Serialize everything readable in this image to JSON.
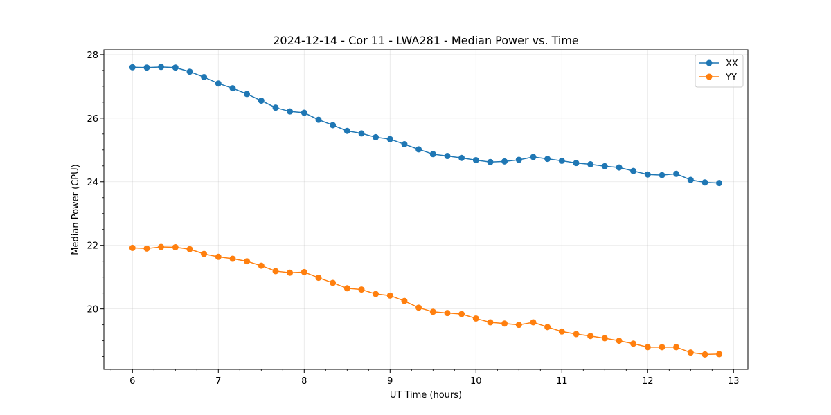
{
  "chart_data": {
    "type": "line",
    "title": "2024-12-14 - Cor 11 - LWA281 - Median Power vs. Time",
    "xlabel": "UT Time (hours)",
    "ylabel": "Median Power (CPU)",
    "xlim": [
      5.667,
      13.167
    ],
    "ylim": [
      18.1,
      28.15
    ],
    "xticks": [
      6,
      7,
      8,
      9,
      10,
      11,
      12,
      13
    ],
    "yticks": [
      20,
      22,
      24,
      26,
      28
    ],
    "grid": true,
    "legend_position": "top-right",
    "x": [
      6.0,
      6.167,
      6.333,
      6.5,
      6.667,
      6.833,
      7.0,
      7.167,
      7.333,
      7.5,
      7.667,
      7.833,
      8.0,
      8.167,
      8.333,
      8.5,
      8.667,
      8.833,
      9.0,
      9.167,
      9.333,
      9.5,
      9.667,
      9.833,
      10.0,
      10.167,
      10.333,
      10.5,
      10.667,
      10.833,
      11.0,
      11.167,
      11.333,
      11.5,
      11.667,
      11.833,
      12.0,
      12.167,
      12.333,
      12.5,
      12.667,
      12.833
    ],
    "series": [
      {
        "name": "XX",
        "color": "#1f77b4",
        "values": [
          27.6,
          27.59,
          27.61,
          27.59,
          27.46,
          27.29,
          27.09,
          26.94,
          26.76,
          26.55,
          26.33,
          26.21,
          26.17,
          25.95,
          25.78,
          25.6,
          25.52,
          25.4,
          25.34,
          25.18,
          25.02,
          24.87,
          24.81,
          24.75,
          24.68,
          24.62,
          24.64,
          24.69,
          24.78,
          24.72,
          24.66,
          24.59,
          24.55,
          24.49,
          24.45,
          24.34,
          24.23,
          24.21,
          24.25,
          24.06,
          23.98,
          23.96
        ]
      },
      {
        "name": "YY",
        "color": "#ff7f0e",
        "values": [
          21.92,
          21.9,
          21.95,
          21.94,
          21.88,
          21.73,
          21.64,
          21.58,
          21.5,
          21.36,
          21.19,
          21.14,
          21.16,
          20.98,
          20.82,
          20.65,
          20.61,
          20.47,
          20.42,
          20.25,
          20.04,
          19.91,
          19.87,
          19.84,
          19.7,
          19.58,
          19.54,
          19.5,
          19.58,
          19.43,
          19.29,
          19.21,
          19.15,
          19.08,
          19.0,
          18.91,
          18.8,
          18.8,
          18.8,
          18.63,
          18.57,
          18.58
        ]
      }
    ]
  }
}
